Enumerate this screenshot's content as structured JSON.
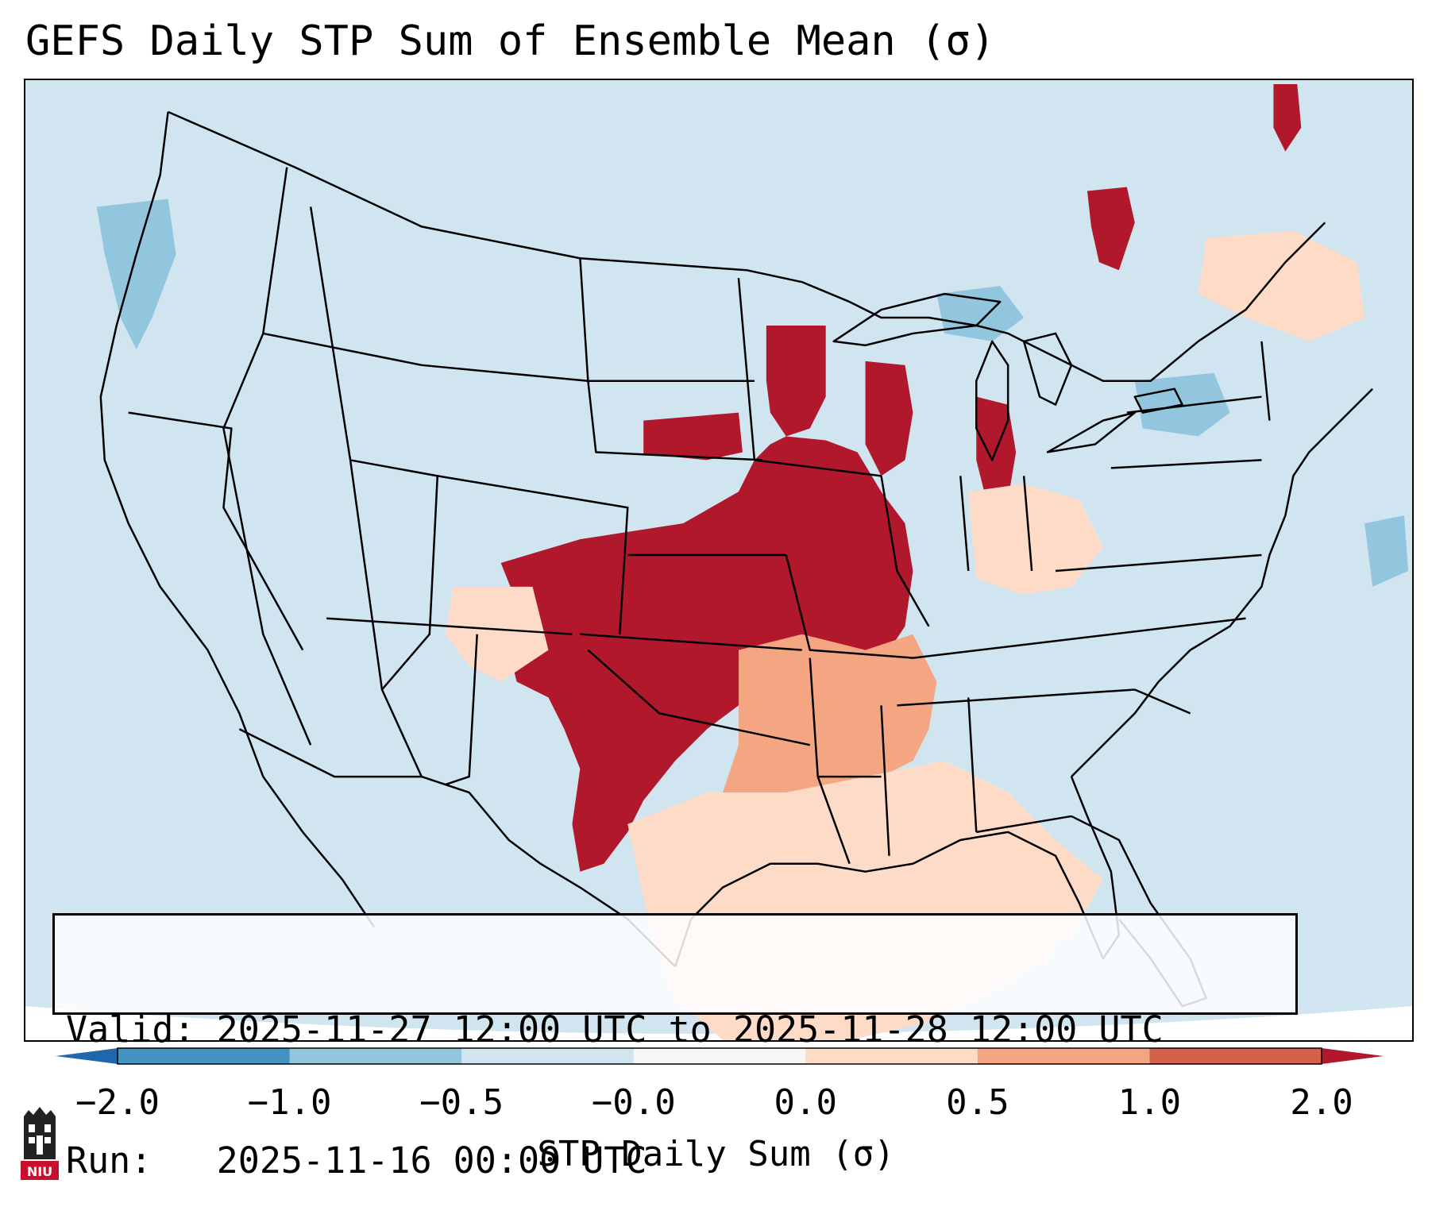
{
  "title": "GEFS Daily STP Sum of Ensemble Mean (σ)",
  "info": {
    "valid_line": "Valid: 2025-11-27 12:00 UTC to 2025-11-28 12:00 UTC",
    "run_line": "Run:   2025-11-16 00:00 UTC"
  },
  "colorbar": {
    "label": "STP Daily Sum (σ)",
    "ticks": [
      "−2.0",
      "−1.0",
      "−0.5",
      "−0.0",
      "0.0",
      "0.5",
      "1.0",
      "2.0"
    ],
    "bins": [
      {
        "from": -2.0,
        "to": -1.0,
        "color": "#4393c3"
      },
      {
        "from": -1.0,
        "to": -0.5,
        "color": "#92c5de"
      },
      {
        "from": -0.5,
        "to": -0.0,
        "color": "#d1e5f0"
      },
      {
        "from": -0.0,
        "to": 0.0,
        "color": "#f7f7f7"
      },
      {
        "from": 0.0,
        "to": 0.5,
        "color": "#fddbc7"
      },
      {
        "from": 0.5,
        "to": 1.0,
        "color": "#f4a582"
      },
      {
        "from": 1.0,
        "to": 2.0,
        "color": "#d6604d"
      }
    ],
    "extend_low_color": "#2166ac",
    "extend_high_color": "#b2182b"
  },
  "map": {
    "background_color": "#d1e5f0",
    "high_color": "#b2182b",
    "mid_color": "#f4a582",
    "low_color": "#fddbc7",
    "negative_color": "#92c5de"
  },
  "logo": {
    "text": "NIU",
    "color": "#c8102e"
  }
}
